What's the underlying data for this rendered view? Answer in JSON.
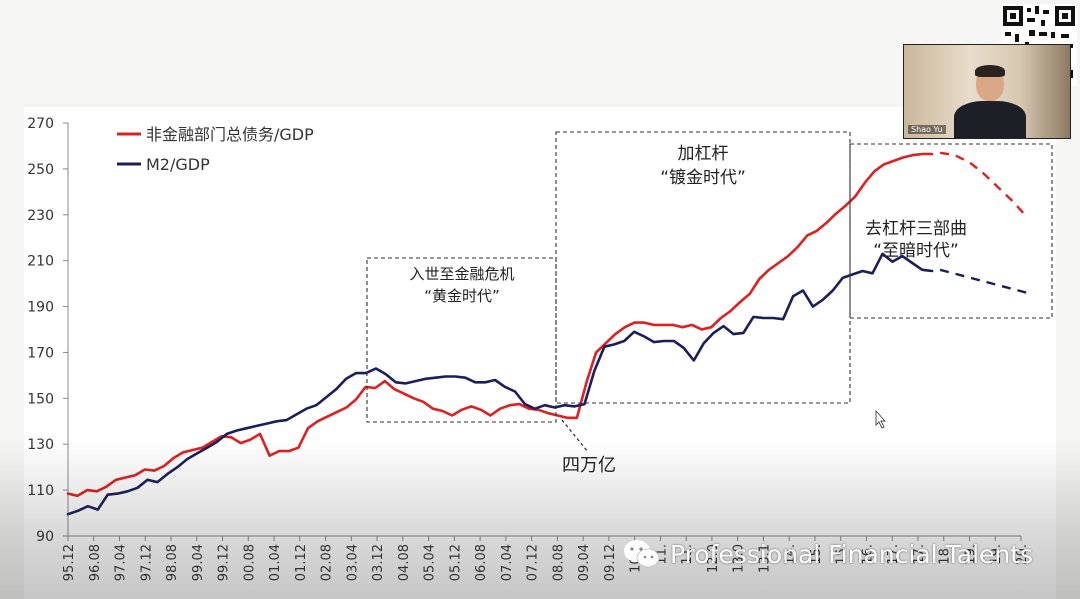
{
  "chart_data": {
    "type": "line",
    "ylim": [
      90,
      270
    ],
    "yticks": [
      "270",
      "250",
      "230",
      "210",
      "190",
      "170",
      "150",
      "130",
      "110",
      "90"
    ],
    "x_labels": [
      "95.12",
      "96.08",
      "97.04",
      "97.12",
      "98.08",
      "99.04",
      "99.12",
      "00.08",
      "01.04",
      "01.12",
      "02.08",
      "03.04",
      "03.12",
      "04.08",
      "05.04",
      "05.12",
      "06.08",
      "07.04",
      "07.12",
      "08.08",
      "09.04",
      "09.12",
      "10.08",
      "11.04",
      "11.12",
      "12.08",
      "13.04",
      "13.12",
      "14.08",
      "15.04",
      "15.12",
      "16.08",
      "17.04",
      "17.12",
      "18.08",
      "19.04",
      "19.12",
      "20.08"
    ],
    "x_labels_visible": [
      "95.12",
      "96.08",
      "97.04",
      "97.12",
      "98.08",
      "99.04",
      "99.12",
      "00.08",
      "01.04",
      "01.12",
      "02.08",
      "03.04",
      "03.12",
      "04.08",
      "05.04",
      "05.12",
      "06.08",
      "07.04",
      "07.12",
      "08.08",
      "09.04",
      "09.12",
      "10.0",
      "11.",
      "11.",
      "12.0",
      "13.0",
      "13.1",
      "14.",
      "15.",
      "15.",
      "16.",
      "17.",
      "17.",
      "18.",
      "19.",
      "19.",
      "20."
    ],
    "series": [
      {
        "name": "非金融部门总债务/GDP",
        "color": "#e02020",
        "values": [
          108.5,
          107.5,
          110,
          109.5,
          111.5,
          114.5,
          115.5,
          116.5,
          119,
          118.5,
          120.5,
          124,
          126.5,
          127.5,
          128.5,
          131,
          133.5,
          133,
          130.5,
          132,
          134.5,
          125,
          127,
          127,
          128.5,
          137,
          140,
          142,
          144,
          146,
          149.5,
          155,
          154.5,
          157.5,
          154,
          152,
          150,
          148.5,
          145.5,
          144.5,
          142.5,
          145,
          146.5,
          145,
          142.5,
          145.5,
          147,
          147.5,
          145.5,
          145,
          143.5,
          142.5,
          141.5,
          141.5,
          157,
          170,
          174,
          178,
          181,
          183,
          183,
          182,
          182,
          182,
          181,
          182,
          180,
          181,
          185,
          188,
          192,
          195.5,
          202,
          206,
          209,
          212,
          216,
          221,
          223,
          226.5,
          230.5,
          234,
          238,
          244,
          249,
          252,
          253.5,
          255,
          256,
          256.5,
          256.5
        ],
        "forecast": [
          257,
          256,
          253,
          248,
          242,
          236,
          229
        ]
      },
      {
        "name": "M2/GDP",
        "color": "#1c1e5c",
        "values": [
          99.5,
          101,
          103,
          101.5,
          108,
          108.5,
          109.5,
          111,
          114.5,
          113.5,
          117,
          120,
          123.5,
          126,
          128.5,
          131,
          134.5,
          136,
          137,
          138,
          139,
          140,
          140.5,
          143,
          145.5,
          147,
          150.5,
          154,
          158.5,
          161,
          161,
          163,
          160.5,
          157,
          156.5,
          157.5,
          158.5,
          159,
          159.5,
          159.5,
          159,
          157,
          157,
          158,
          155,
          153,
          147.5,
          145.5,
          147,
          146,
          147,
          146.5,
          147.5,
          162,
          172.5,
          173.5,
          175,
          179,
          177,
          174.5,
          175,
          175,
          172,
          166.5,
          174,
          178.5,
          181.5,
          178,
          178.5,
          185.5,
          185,
          185,
          184.5,
          194.5,
          197,
          190,
          193,
          197,
          202.5,
          204,
          205.5,
          204.5,
          213,
          209.5,
          212,
          209,
          206,
          205.5
        ],
        "forecast": [
          206,
          204,
          202,
          200,
          198,
          196
        ]
      }
    ],
    "annotations": [
      {
        "id": "period-1-title",
        "text": "入世至金融危机"
      },
      {
        "id": "period-1-sub",
        "text": "“黄金时代”"
      },
      {
        "id": "period-2-title",
        "text": "加杠杆"
      },
      {
        "id": "period-2-sub",
        "text": "“镀金时代”"
      },
      {
        "id": "period-3-title",
        "text": "去杠杆三部曲"
      },
      {
        "id": "period-3-sub",
        "text": "“至暗时代”"
      },
      {
        "id": "stimulus-label",
        "text": "四万亿"
      }
    ]
  },
  "video": {
    "participant_name": "Shao Yu"
  },
  "watermark": {
    "text": "Professional Financial Talents",
    "icon": "wechat-icon"
  },
  "colors": {
    "debt": "#e02020",
    "m2": "#1c1e5c",
    "background": "#f5f5f3"
  }
}
